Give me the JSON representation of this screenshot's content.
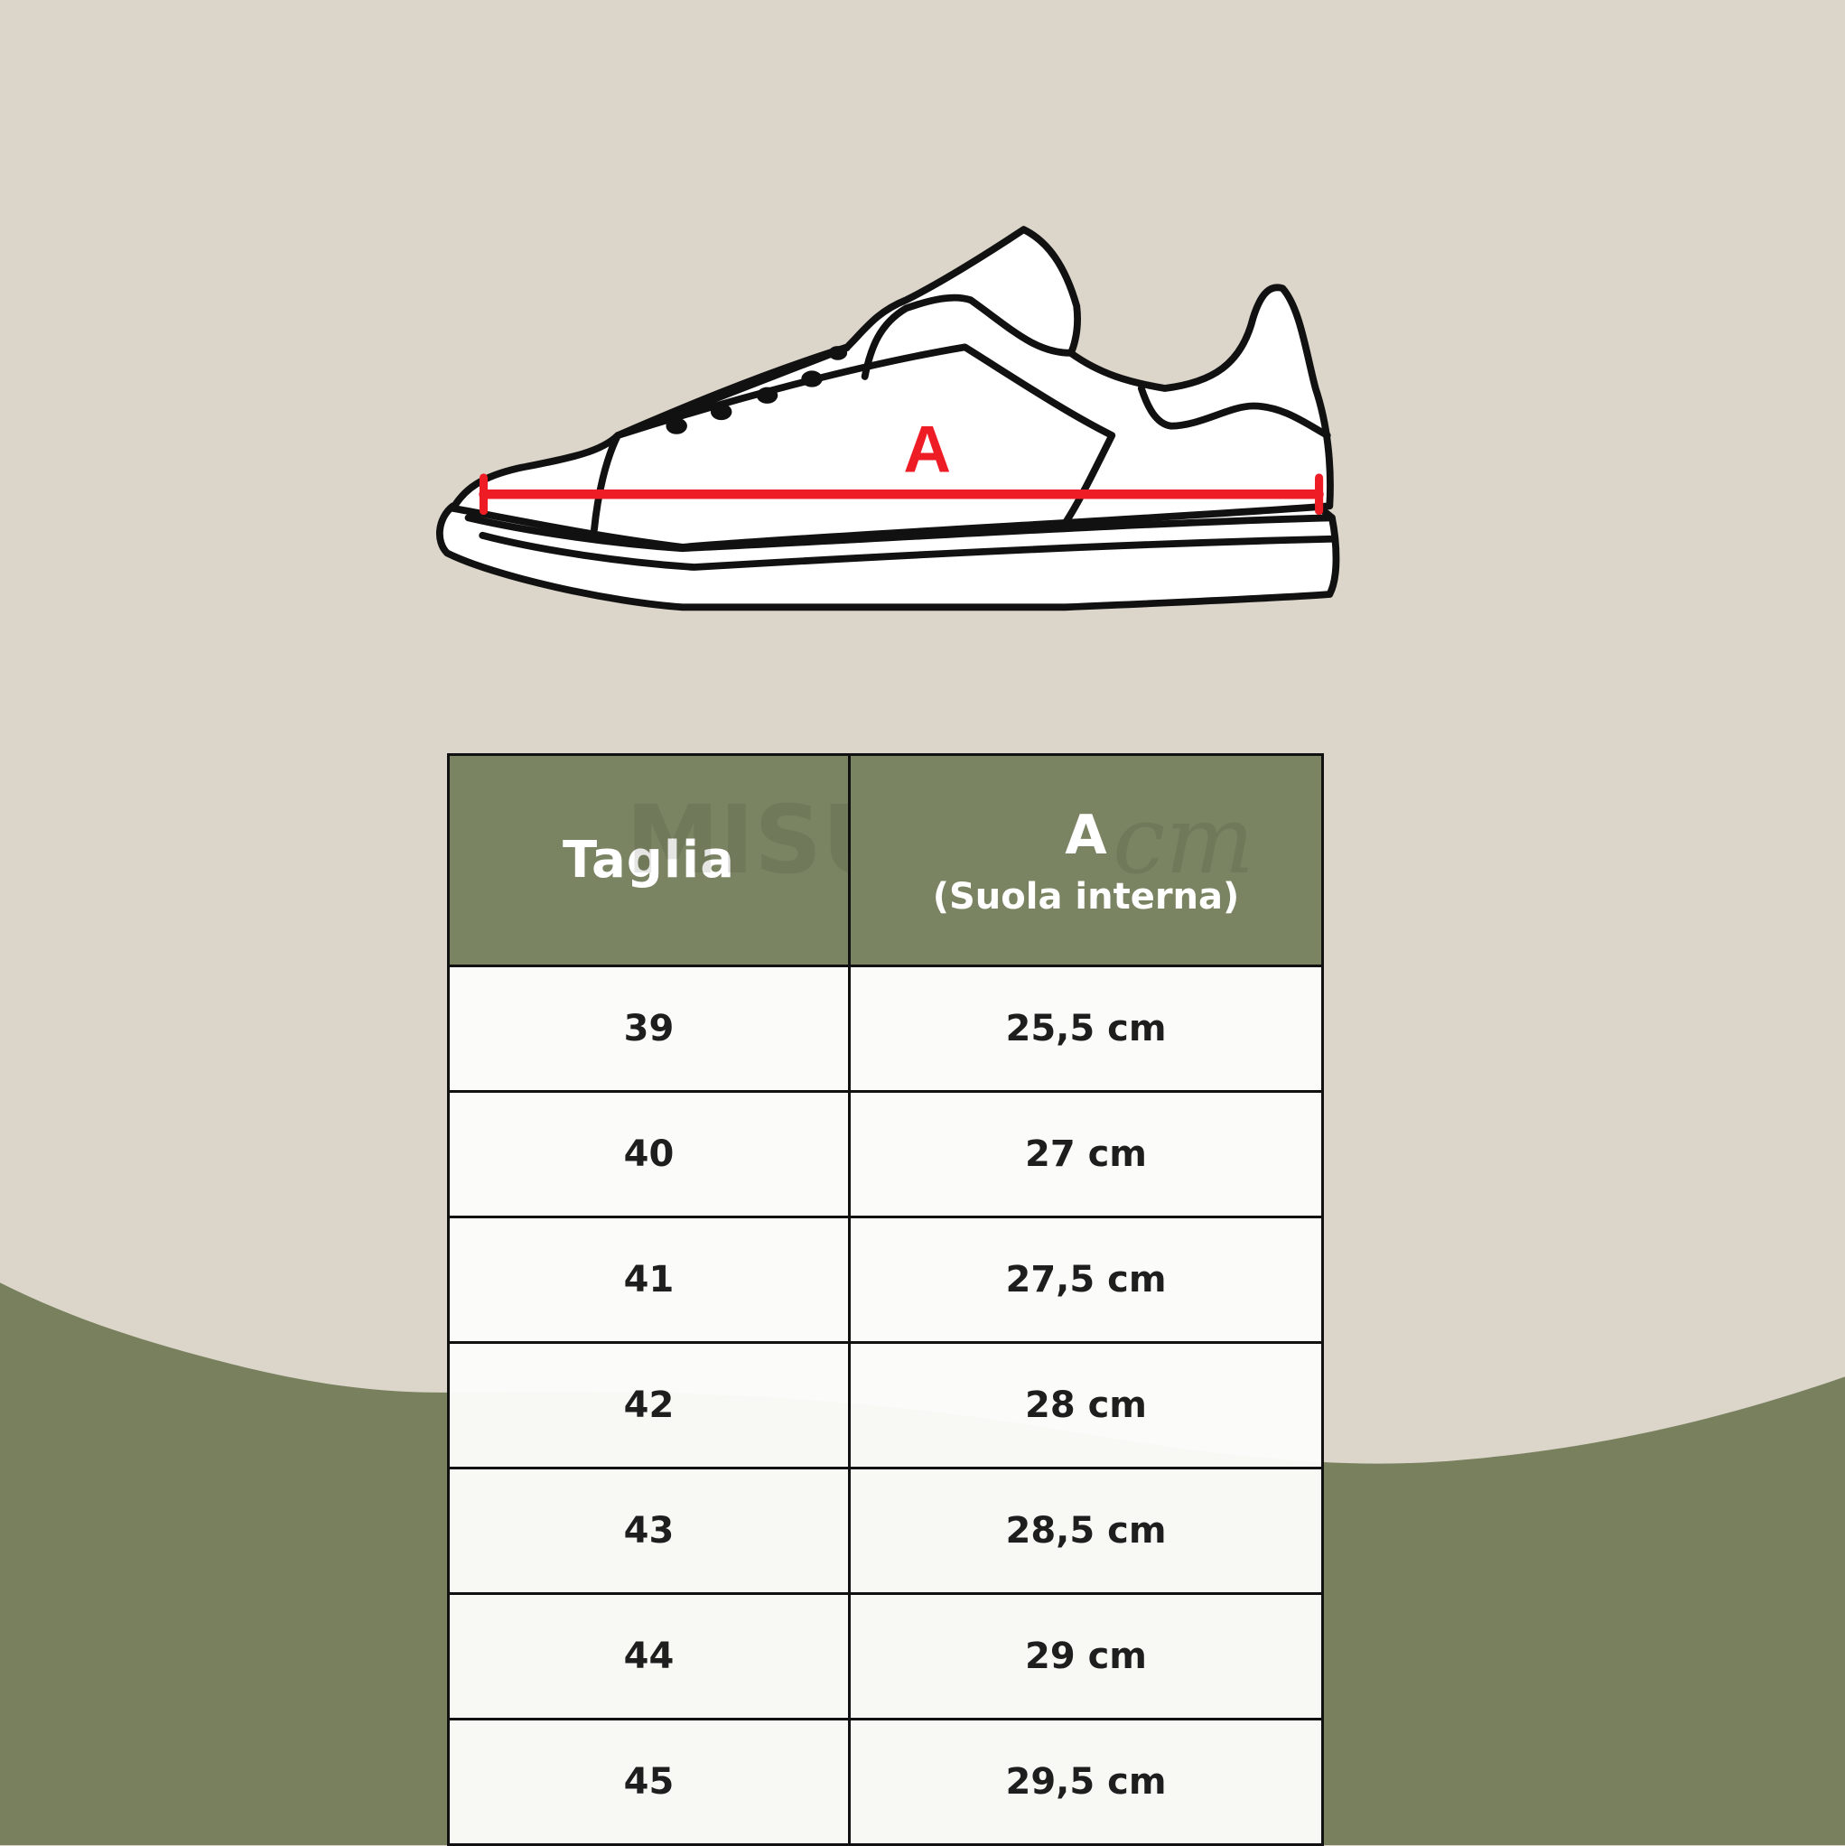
{
  "colors": {
    "background": "#dbd5ca",
    "wave": "#78805e",
    "header": "#7a8462",
    "measure_line": "#ee1c25"
  },
  "diagram": {
    "measure_label": "A"
  },
  "watermark": {
    "text": "MISURE IN",
    "unit": "cm"
  },
  "table": {
    "headers": {
      "size": "Taglia",
      "measure": "A",
      "measure_sub": "(Suola interna)"
    },
    "rows": [
      {
        "size": "39",
        "length": "25,5 cm"
      },
      {
        "size": "40",
        "length": "27 cm"
      },
      {
        "size": "41",
        "length": "27,5 cm"
      },
      {
        "size": "42",
        "length": "28 cm"
      },
      {
        "size": "43",
        "length": "28,5 cm"
      },
      {
        "size": "44",
        "length": "29 cm"
      },
      {
        "size": "45",
        "length": "29,5 cm"
      }
    ]
  }
}
